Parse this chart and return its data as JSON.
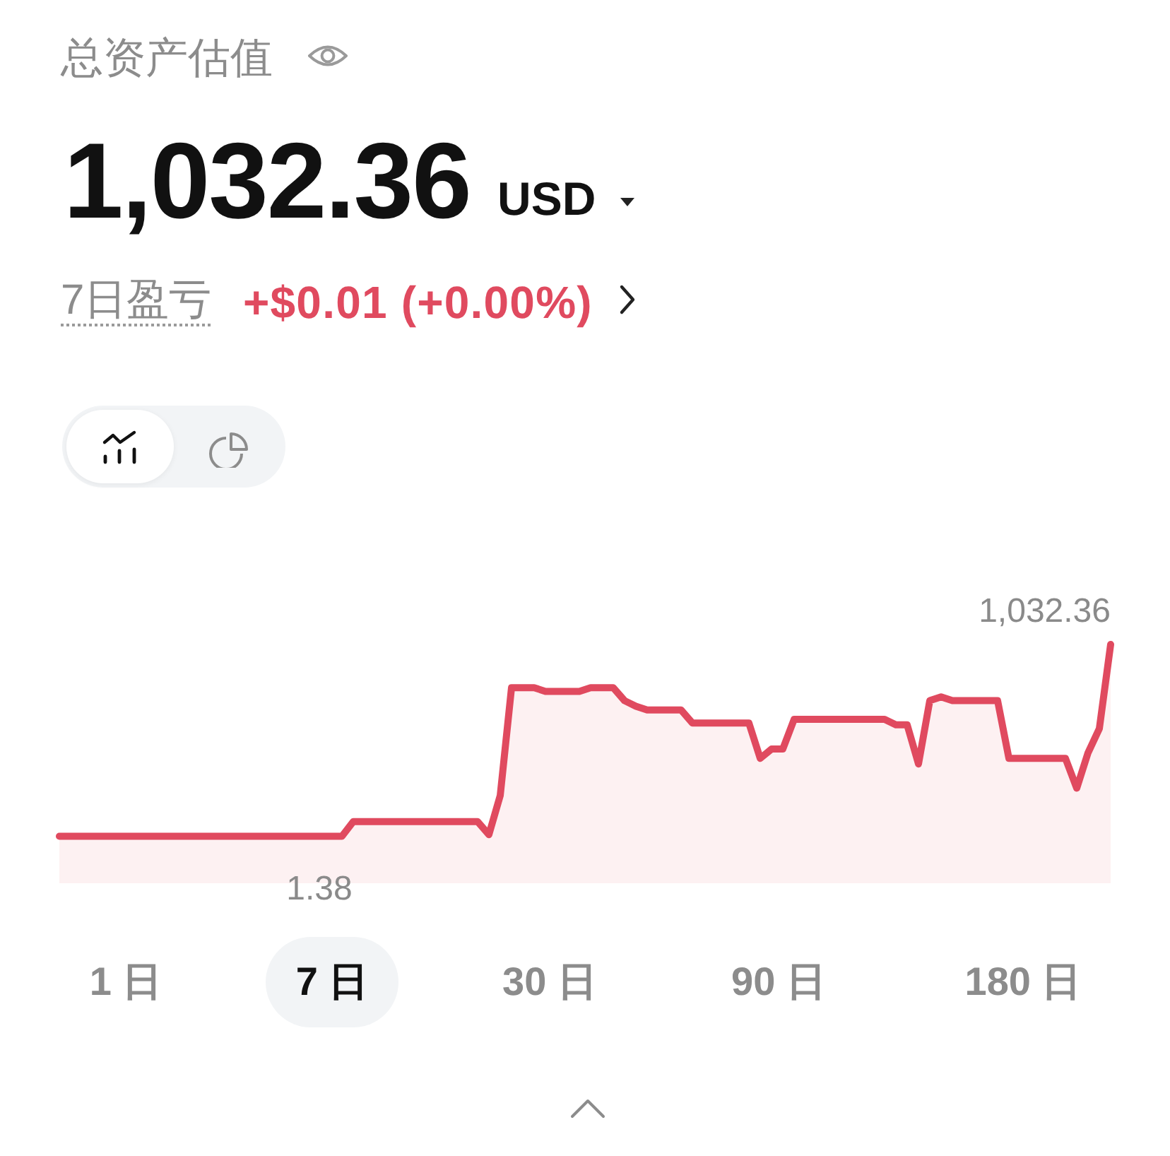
{
  "chart_data": {
    "type": "area",
    "title": "总资产估值",
    "annotations": [
      "1,032.36",
      "USD",
      "7日盈亏",
      "+$0.01 (+0.00%)",
      "1 日",
      "7 日",
      "30 日",
      "90 日",
      "180 日"
    ],
    "categories": [
      null,
      null,
      null,
      null,
      null,
      null,
      null,
      null,
      null,
      null,
      null,
      null,
      null,
      null,
      null,
      null,
      null,
      null,
      null,
      null,
      null,
      null,
      null,
      null,
      null,
      null,
      null,
      null,
      null,
      null,
      null,
      null,
      null,
      null,
      null,
      null,
      null,
      null,
      null,
      null,
      null,
      null,
      null,
      null,
      null,
      null,
      null,
      null,
      null,
      null,
      null,
      null,
      null,
      null,
      null,
      null,
      null,
      null,
      null,
      null,
      null,
      null,
      null,
      null,
      null,
      null,
      null,
      null,
      null,
      null,
      null,
      null,
      null,
      null,
      null,
      null,
      null,
      null,
      null,
      null,
      null,
      null,
      null,
      null,
      null,
      null,
      null,
      null,
      null,
      null,
      null,
      null,
      null,
      null
    ],
    "values": [
      1.38,
      1.38,
      1.38,
      1.38,
      1.38,
      1.38,
      1.38,
      1.38,
      1.38,
      1.38,
      1.38,
      1.38,
      1.38,
      1.38,
      1.38,
      1.38,
      1.38,
      1.38,
      1.38,
      1.38,
      1.38,
      1.38,
      1.38,
      1.38,
      1.38,
      1.38,
      80,
      80,
      80,
      80,
      80,
      80,
      80,
      80,
      80,
      80,
      80,
      80,
      10,
      220,
      800,
      800,
      800,
      780,
      780,
      780,
      780,
      800,
      800,
      800,
      730,
      700,
      680,
      680,
      680,
      680,
      610,
      610,
      610,
      610,
      610,
      610,
      420,
      470,
      470,
      630,
      630,
      630,
      630,
      630,
      630,
      630,
      630,
      630,
      600,
      600,
      390,
      730,
      750,
      730,
      730,
      730,
      730,
      730,
      420,
      420,
      420,
      420,
      420,
      420,
      260,
      450,
      580,
      1032.36
    ],
    "value_labels": [
      null,
      null,
      null,
      null,
      null,
      null,
      null,
      null,
      null,
      null,
      null,
      null,
      null,
      null,
      null,
      null,
      null,
      null,
      null,
      null,
      null,
      null,
      null,
      "1.38",
      null,
      null,
      null,
      null,
      null,
      null,
      null,
      null,
      null,
      null,
      null,
      null,
      null,
      null,
      null,
      null,
      null,
      null,
      null,
      null,
      null,
      null,
      null,
      null,
      null,
      null,
      null,
      null,
      null,
      null,
      null,
      null,
      null,
      null,
      null,
      null,
      null,
      null,
      null,
      null,
      null,
      null,
      null,
      null,
      null,
      null,
      null,
      null,
      null,
      null,
      null,
      null,
      null,
      null,
      null,
      null,
      null,
      null,
      null,
      null,
      null,
      null,
      null,
      null,
      null,
      null,
      null,
      null,
      null,
      "1,032.36"
    ],
    "color": "#e04a5f",
    "tick_labels": false
  }
}
